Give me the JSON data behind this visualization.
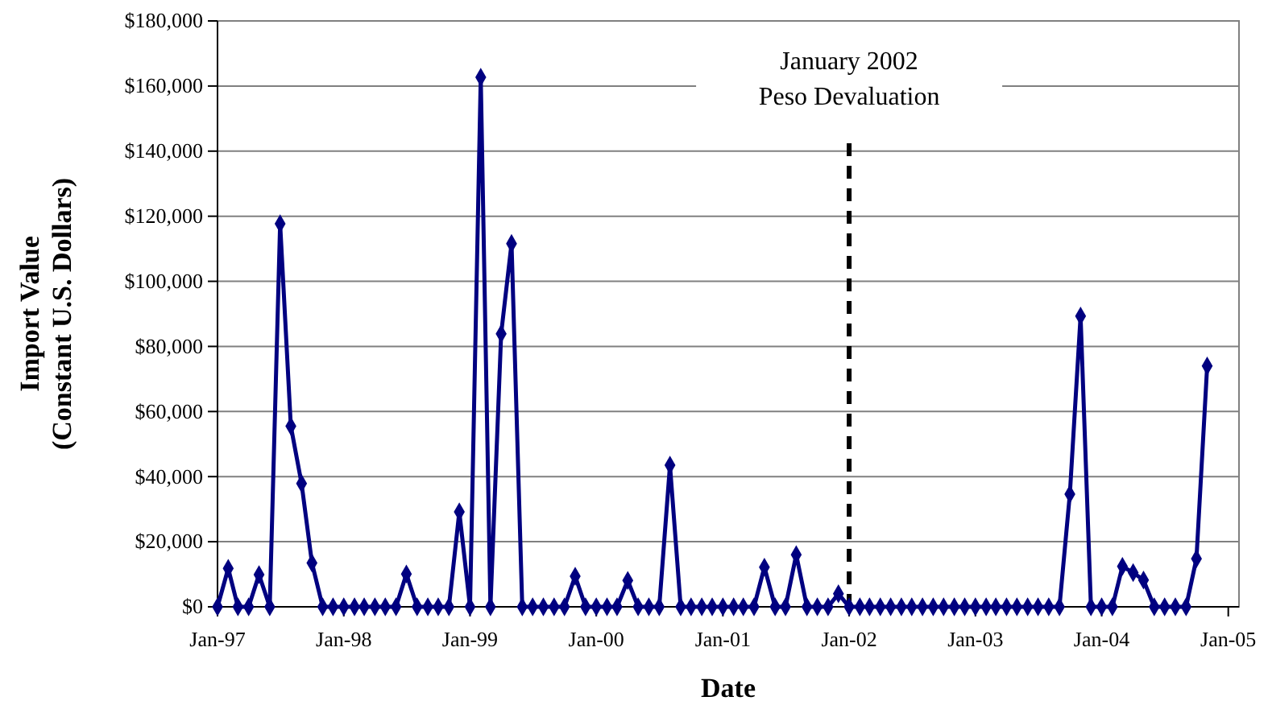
{
  "chart_data": {
    "type": "line",
    "xlabel": "Date",
    "ylabel": "Import Value\n(Constant U.S. Dollars)",
    "x": [
      "1997-01",
      "1997-02",
      "1997-03",
      "1997-04",
      "1997-05",
      "1997-06",
      "1997-07",
      "1997-08",
      "1997-09",
      "1997-10",
      "1997-11",
      "1997-12",
      "1998-01",
      "1998-02",
      "1998-03",
      "1998-04",
      "1998-05",
      "1998-06",
      "1998-07",
      "1998-08",
      "1998-09",
      "1998-10",
      "1998-11",
      "1998-12",
      "1999-01",
      "1999-02",
      "1999-03",
      "1999-04",
      "1999-05",
      "1999-06",
      "1999-07",
      "1999-08",
      "1999-09",
      "1999-10",
      "1999-11",
      "1999-12",
      "2000-01",
      "2000-02",
      "2000-03",
      "2000-04",
      "2000-05",
      "2000-06",
      "2000-07",
      "2000-08",
      "2000-09",
      "2000-10",
      "2000-11",
      "2000-12",
      "2001-01",
      "2001-02",
      "2001-03",
      "2001-04",
      "2001-05",
      "2001-06",
      "2001-07",
      "2001-08",
      "2001-09",
      "2001-10",
      "2001-11",
      "2001-12",
      "2002-01",
      "2002-02",
      "2002-03",
      "2002-04",
      "2002-05",
      "2002-06",
      "2002-07",
      "2002-08",
      "2002-09",
      "2002-10",
      "2002-11",
      "2002-12",
      "2003-01",
      "2003-02",
      "2003-03",
      "2003-04",
      "2003-05",
      "2003-06",
      "2003-07",
      "2003-08",
      "2003-09",
      "2003-10",
      "2003-11",
      "2003-12",
      "2004-01",
      "2004-02",
      "2004-03",
      "2004-04",
      "2004-05",
      "2004-06",
      "2004-07",
      "2004-08",
      "2004-09",
      "2004-10",
      "2004-11"
    ],
    "series": [
      {
        "color": "#000080",
        "values": [
          0,
          11800,
          0,
          0,
          9900,
          0,
          117700,
          55500,
          37900,
          13500,
          0,
          0,
          0,
          0,
          0,
          0,
          0,
          0,
          10100,
          0,
          0,
          0,
          0,
          29200,
          0,
          162700,
          0,
          83900,
          111600,
          0,
          0,
          0,
          0,
          0,
          9400,
          0,
          0,
          0,
          0,
          8100,
          0,
          0,
          0,
          43500,
          0,
          0,
          0,
          0,
          0,
          0,
          0,
          0,
          12200,
          0,
          0,
          16000,
          0,
          0,
          0,
          4000,
          0,
          0,
          0,
          0,
          0,
          0,
          0,
          0,
          0,
          0,
          0,
          0,
          0,
          0,
          0,
          0,
          0,
          0,
          0,
          0,
          0,
          34600,
          89300,
          0,
          0,
          0,
          12400,
          10500,
          8200,
          0,
          0,
          0,
          0,
          14800,
          74000
        ]
      }
    ],
    "xlim": [
      "1997-01",
      "2005-02"
    ],
    "xticks": [
      {
        "value": "1997-01",
        "label": "Jan-97"
      },
      {
        "value": "1998-01",
        "label": "Jan-98"
      },
      {
        "value": "1999-01",
        "label": "Jan-99"
      },
      {
        "value": "2000-01",
        "label": "Jan-00"
      },
      {
        "value": "2001-01",
        "label": "Jan-01"
      },
      {
        "value": "2002-01",
        "label": "Jan-02"
      },
      {
        "value": "2003-01",
        "label": "Jan-03"
      },
      {
        "value": "2004-01",
        "label": "Jan-04"
      },
      {
        "value": "2005-01",
        "label": "Jan-05"
      }
    ],
    "ylim": [
      0,
      180000
    ],
    "yticks": [
      {
        "value": 0,
        "label": "$0"
      },
      {
        "value": 20000,
        "label": "$20,000"
      },
      {
        "value": 40000,
        "label": "$40,000"
      },
      {
        "value": 60000,
        "label": "$60,000"
      },
      {
        "value": 80000,
        "label": "$80,000"
      },
      {
        "value": 100000,
        "label": "$100,000"
      },
      {
        "value": 120000,
        "label": "$120,000"
      },
      {
        "value": 140000,
        "label": "$140,000"
      },
      {
        "value": 160000,
        "label": "$160,000"
      },
      {
        "value": 180000,
        "label": "$180,000"
      }
    ],
    "grid": "y",
    "marker": "diamond",
    "line_style": "solid",
    "ref_lines": [
      {
        "axis": "x",
        "value": "2002-01",
        "label": "January 2002\nPeso Devaluation",
        "color": "#000000",
        "line_style": "dashed"
      }
    ]
  }
}
